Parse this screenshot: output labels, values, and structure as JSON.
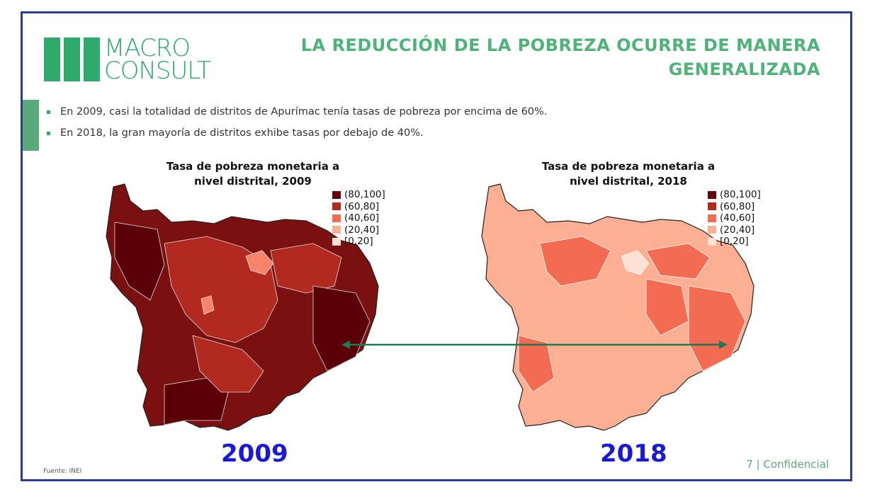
{
  "logo": {
    "line1": "MACRO",
    "line2": "CONSULT"
  },
  "title": {
    "line1": "LA REDUCCIÓN DE LA POBREZA OCURRE DE MANERA",
    "line2": "GENERALIZADA"
  },
  "bullets": [
    "En 2009, casi la totalidad de distritos de Apurímac tenía tasas de pobreza por encima de 60%.",
    "En 2018, la gran mayoría de distritos exhibe tasas por debajo de 40%."
  ],
  "maps": [
    {
      "title_line1": "Tasa de pobreza monetaria a",
      "title_line2": "nivel distrital, 2009",
      "year": "2009"
    },
    {
      "title_line1": "Tasa de pobreza monetaria a",
      "title_line2": "nivel distrital, 2018",
      "year": "2018"
    }
  ],
  "legend": [
    {
      "label": "(80,100]",
      "color": "#67000d"
    },
    {
      "label": "(60,80]",
      "color": "#b22a1f"
    },
    {
      "label": "(40,60]",
      "color": "#f26b52"
    },
    {
      "label": "(20,40]",
      "color": "#fcaf92"
    },
    {
      "label": "[0,20]",
      "color": "#fde1d4"
    }
  ],
  "colors": {
    "brand_green": "#2eaa6b",
    "arrow_green": "#1f7a4f",
    "year_blue": "#1a1ad6",
    "border_blue": "#2b3a9e"
  },
  "footer": {
    "source": "Fuente: INEI",
    "page": "7 | Confidencial"
  }
}
